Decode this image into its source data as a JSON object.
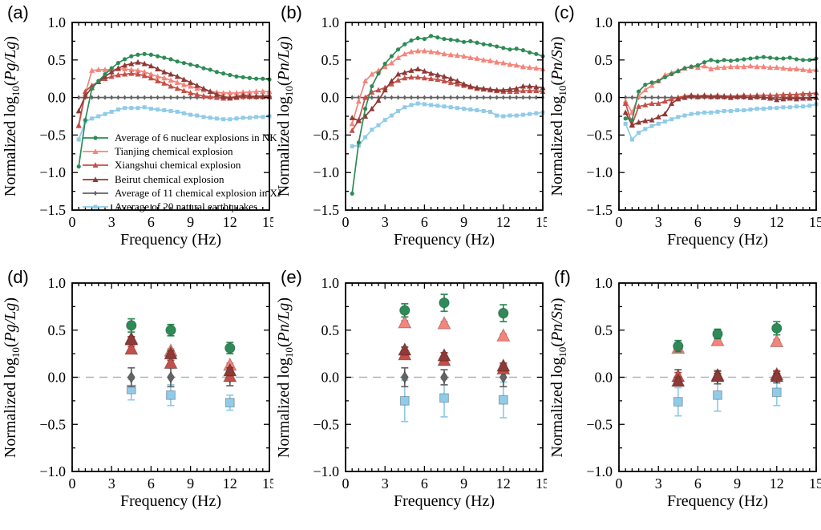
{
  "figure": {
    "xlabel": "Frequency (Hz)",
    "xlim": [
      0,
      15
    ],
    "xticks": [
      0,
      3,
      6,
      9,
      12,
      15
    ],
    "x_minor_step": 0.5,
    "y_minor_step": 0.25,
    "background": "#ffffff",
    "axis_color": "#000000",
    "zero_line_color": "#b3b3b3"
  },
  "series_meta": [
    {
      "id": "nk",
      "label": "Average of 6 nuclear explosions in NK",
      "color": "#2e8b57",
      "marker": "circle"
    },
    {
      "id": "tianjing",
      "label": "Tianjing chemical explosion",
      "color": "#f5847b",
      "marker": "triangle"
    },
    {
      "id": "xiangshui",
      "label": "Xiangshui chemical explosion",
      "color": "#c35049",
      "marker": "triangle"
    },
    {
      "id": "beirut",
      "label": "Beirut chemical explosion",
      "color": "#8e3a36",
      "marker": "triangle"
    },
    {
      "id": "xj",
      "label": "Average of 11 chemical explosion in XJ",
      "color": "#636363",
      "marker": "diamond"
    },
    {
      "id": "eq",
      "label": "Average of 20 natural earthquakes",
      "color": "#90cbe9",
      "marker": "square"
    }
  ],
  "chart_data": [
    {
      "letter": "(a)",
      "type": "line",
      "legend": true,
      "ylabel": {
        "prefix": "Normalized log",
        "sub": "10",
        "ratio": "Pg/Lg"
      },
      "xlabel": "Frequency (Hz)",
      "ylim": [
        -1.5,
        1.0
      ],
      "yticks": [
        -1.5,
        -1.0,
        -0.5,
        0.0,
        0.5,
        1.0
      ],
      "x": [
        0.5,
        1,
        1.5,
        2,
        2.5,
        3,
        3.5,
        4,
        4.5,
        5,
        5.5,
        6,
        6.5,
        7,
        7.5,
        8,
        8.5,
        9,
        9.5,
        10,
        10.5,
        11,
        11.5,
        12,
        12.5,
        13,
        13.5,
        14,
        14.5,
        15
      ],
      "series": {
        "nk": [
          -0.92,
          -0.3,
          0.12,
          0.22,
          0.31,
          0.39,
          0.46,
          0.51,
          0.55,
          0.57,
          0.58,
          0.57,
          0.55,
          0.53,
          0.51,
          0.48,
          0.46,
          0.44,
          0.42,
          0.39,
          0.37,
          0.34,
          0.32,
          0.3,
          0.28,
          0.27,
          0.26,
          0.25,
          0.25,
          0.24
        ],
        "tianjing": [
          -0.38,
          0.05,
          0.36,
          0.37,
          0.37,
          0.37,
          0.38,
          0.38,
          0.37,
          0.36,
          0.34,
          0.31,
          0.28,
          0.26,
          0.23,
          0.2,
          0.17,
          0.15,
          0.12,
          0.1,
          0.08,
          0.07,
          0.06,
          0.06,
          0.06,
          0.07,
          0.07,
          0.08,
          0.08,
          0.08
        ],
        "xiangshui": [
          -0.37,
          0.08,
          0.16,
          0.21,
          0.25,
          0.28,
          0.3,
          0.31,
          0.32,
          0.31,
          0.29,
          0.26,
          0.22,
          0.19,
          0.15,
          0.12,
          0.09,
          0.06,
          0.04,
          0.02,
          0.01,
          0.0,
          -0.01,
          -0.01,
          0.0,
          0.01,
          0.01,
          0.02,
          0.02,
          0.03
        ],
        "beirut": [
          -0.18,
          0.02,
          0.13,
          0.21,
          0.28,
          0.34,
          0.39,
          0.43,
          0.45,
          0.47,
          0.45,
          0.42,
          0.38,
          0.34,
          0.31,
          0.28,
          0.24,
          0.2,
          0.16,
          0.12,
          0.08,
          0.04,
          0.01,
          0.0,
          0.01,
          0.03,
          0.02,
          0.01,
          0.01,
          0.01
        ],
        "xj": [
          0,
          0,
          0,
          0,
          0,
          0,
          0,
          0,
          0,
          0,
          0,
          0,
          0,
          0,
          0,
          0,
          0,
          0,
          0,
          0,
          0,
          0,
          0,
          0,
          0,
          0,
          0,
          0,
          0,
          0
        ],
        "eq": [
          -0.56,
          -0.32,
          -0.28,
          -0.25,
          -0.22,
          -0.19,
          -0.16,
          -0.14,
          -0.14,
          -0.14,
          -0.13,
          -0.15,
          -0.16,
          -0.17,
          -0.18,
          -0.19,
          -0.21,
          -0.23,
          -0.24,
          -0.26,
          -0.27,
          -0.28,
          -0.29,
          -0.29,
          -0.28,
          -0.27,
          -0.27,
          -0.26,
          -0.26,
          -0.25
        ]
      }
    },
    {
      "letter": "(b)",
      "type": "line",
      "ylabel": {
        "prefix": "Normalized log",
        "sub": "10",
        "ratio": "Pn/Lg"
      },
      "xlabel": "Frequency (Hz)",
      "ylim": [
        -1.5,
        1.0
      ],
      "yticks": [
        -1.5,
        -1.0,
        -0.5,
        0.0,
        0.5,
        1.0
      ],
      "x": [
        0.5,
        1,
        1.5,
        2,
        2.5,
        3,
        3.5,
        4,
        4.5,
        5,
        5.5,
        6,
        6.5,
        7,
        7.5,
        8,
        8.5,
        9,
        9.5,
        10,
        10.5,
        11,
        11.5,
        12,
        12.5,
        13,
        13.5,
        14,
        14.5,
        15
      ],
      "series": {
        "nk": [
          -1.28,
          -0.6,
          -0.15,
          0.15,
          0.32,
          0.45,
          0.55,
          0.64,
          0.71,
          0.76,
          0.79,
          0.78,
          0.82,
          0.8,
          0.78,
          0.77,
          0.76,
          0.74,
          0.75,
          0.73,
          0.71,
          0.7,
          0.68,
          0.66,
          0.64,
          0.65,
          0.63,
          0.6,
          0.58,
          0.55
        ],
        "tianjing": [
          -0.35,
          -0.05,
          0.22,
          0.31,
          0.36,
          0.41,
          0.46,
          0.53,
          0.58,
          0.61,
          0.62,
          0.62,
          0.61,
          0.6,
          0.58,
          0.57,
          0.56,
          0.55,
          0.53,
          0.52,
          0.5,
          0.49,
          0.47,
          0.46,
          0.44,
          0.43,
          0.41,
          0.4,
          0.39,
          0.38
        ],
        "xiangshui": [
          -0.44,
          -0.3,
          0.0,
          0.07,
          0.1,
          0.13,
          0.18,
          0.23,
          0.26,
          0.27,
          0.27,
          0.26,
          0.25,
          0.24,
          0.22,
          0.2,
          0.18,
          0.16,
          0.14,
          0.12,
          0.11,
          0.1,
          0.09,
          0.08,
          0.08,
          0.08,
          0.09,
          0.09,
          0.09,
          0.08
        ],
        "beirut": [
          -0.27,
          -0.31,
          -0.25,
          -0.15,
          -0.04,
          0.1,
          0.22,
          0.31,
          0.33,
          0.36,
          0.38,
          0.35,
          0.32,
          0.3,
          0.28,
          0.25,
          0.22,
          0.18,
          0.15,
          0.13,
          0.12,
          0.11,
          0.1,
          0.1,
          0.11,
          0.12,
          0.15,
          0.15,
          0.14,
          0.13
        ],
        "xj": [
          0,
          0,
          0,
          0,
          0,
          0,
          0,
          0,
          0,
          0,
          0,
          0,
          0,
          0,
          0,
          0,
          0,
          0,
          0,
          0,
          0,
          0,
          0,
          0,
          0,
          0,
          0,
          0,
          0,
          0
        ],
        "eq": [
          -0.65,
          -0.64,
          -0.53,
          -0.43,
          -0.37,
          -0.3,
          -0.24,
          -0.18,
          -0.13,
          -0.1,
          -0.08,
          -0.09,
          -0.1,
          -0.11,
          -0.12,
          -0.13,
          -0.14,
          -0.15,
          -0.16,
          -0.17,
          -0.18,
          -0.19,
          -0.24,
          -0.25,
          -0.24,
          -0.24,
          -0.23,
          -0.22,
          -0.21,
          -0.2
        ]
      }
    },
    {
      "letter": "(c)",
      "type": "line",
      "ylabel": {
        "prefix": "Normalized log",
        "sub": "10",
        "ratio": "Pn/Sn"
      },
      "xlabel": "Frequency (Hz)",
      "ylim": [
        -1.5,
        1.0
      ],
      "yticks": [
        -1.5,
        -1.0,
        -0.5,
        0.0,
        0.5,
        1.0
      ],
      "x": [
        0.5,
        1,
        1.5,
        2,
        2.5,
        3,
        3.5,
        4,
        4.5,
        5,
        5.5,
        6,
        6.5,
        7,
        7.5,
        8,
        8.5,
        9,
        9.5,
        10,
        10.5,
        11,
        11.5,
        12,
        12.5,
        13,
        13.5,
        14,
        14.5,
        15
      ],
      "series": {
        "nk": [
          -0.28,
          -0.3,
          0.08,
          0.17,
          0.2,
          0.22,
          0.27,
          0.31,
          0.35,
          0.39,
          0.41,
          0.43,
          0.47,
          0.5,
          0.48,
          0.5,
          0.49,
          0.5,
          0.51,
          0.52,
          0.53,
          0.54,
          0.53,
          0.52,
          0.52,
          0.53,
          0.51,
          0.5,
          0.5,
          0.52
        ],
        "tianjing": [
          -0.05,
          -0.2,
          0.02,
          0.1,
          0.16,
          0.22,
          0.3,
          0.33,
          0.36,
          0.39,
          0.41,
          0.4,
          0.42,
          0.38,
          0.4,
          0.4,
          0.41,
          0.41,
          0.41,
          0.42,
          0.41,
          0.41,
          0.4,
          0.4,
          0.39,
          0.38,
          0.38,
          0.37,
          0.36,
          0.37
        ],
        "xiangshui": [
          -0.08,
          -0.36,
          -0.12,
          -0.1,
          -0.08,
          -0.08,
          -0.05,
          -0.02,
          0.0,
          0.02,
          0.03,
          0.02,
          0.03,
          0.02,
          0.03,
          0.02,
          0.02,
          0.02,
          0.03,
          0.02,
          0.03,
          0.03,
          0.03,
          0.03,
          0.04,
          0.04,
          0.04,
          0.05,
          0.05,
          0.06
        ],
        "beirut": [
          -0.2,
          -0.37,
          -0.33,
          -0.31,
          -0.3,
          -0.26,
          -0.22,
          -0.08,
          -0.02,
          0.0,
          0.02,
          0.01,
          0.02,
          0.01,
          0.01,
          0.01,
          0.0,
          0.01,
          0.01,
          0.0,
          0.01,
          0.0,
          -0.01,
          -0.03,
          -0.02,
          -0.01,
          -0.02,
          -0.01,
          -0.01,
          0.0
        ],
        "xj": [
          0,
          0,
          0,
          0,
          0,
          0,
          0,
          0,
          0,
          0,
          0,
          0,
          0,
          0,
          0,
          0,
          0,
          0,
          0,
          0,
          0,
          0,
          0,
          0,
          0,
          0,
          0,
          0,
          0,
          0
        ],
        "eq": [
          -0.35,
          -0.56,
          -0.47,
          -0.42,
          -0.38,
          -0.35,
          -0.32,
          -0.29,
          -0.26,
          -0.24,
          -0.22,
          -0.21,
          -0.2,
          -0.2,
          -0.19,
          -0.18,
          -0.18,
          -0.17,
          -0.17,
          -0.16,
          -0.15,
          -0.15,
          -0.14,
          -0.14,
          -0.13,
          -0.13,
          -0.12,
          -0.12,
          -0.11,
          -0.09
        ]
      }
    },
    {
      "letter": "(d)",
      "type": "scatter",
      "zero_line": "dashed",
      "ylabel": {
        "prefix": "Normalized log",
        "sub": "10",
        "ratio": "Pg/Lg"
      },
      "xlabel": "Frequency (Hz)",
      "ylim": [
        -1.0,
        1.0
      ],
      "yticks": [
        -1.0,
        -0.5,
        0.0,
        0.5,
        1.0
      ],
      "x": [
        4.5,
        7.5,
        12
      ],
      "series": {
        "nk": {
          "y": [
            0.55,
            0.5,
            0.31
          ],
          "err": [
            0.07,
            0.06,
            0.06
          ]
        },
        "tianjing": {
          "y": [
            0.41,
            0.28,
            0.13
          ],
          "err": [
            0.02,
            0.02,
            0.02
          ]
        },
        "xiangshui": {
          "y": [
            0.3,
            0.15,
            0.01
          ],
          "err": [
            0.03,
            0.03,
            0.04
          ]
        },
        "beirut": {
          "y": [
            0.4,
            0.25,
            0.07
          ],
          "err": [
            0.03,
            0.03,
            0.03
          ]
        },
        "xj": {
          "y": [
            0.0,
            0.0,
            0.0
          ],
          "err": [
            0.1,
            0.1,
            0.09
          ]
        },
        "eq": {
          "y": [
            -0.13,
            -0.19,
            -0.27
          ],
          "err": [
            0.11,
            0.11,
            0.08
          ]
        }
      }
    },
    {
      "letter": "(e)",
      "type": "scatter",
      "zero_line": "dashed",
      "ylabel": {
        "prefix": "Normalized log",
        "sub": "10",
        "ratio": "Pn/Lg"
      },
      "xlabel": "Frequency (Hz)",
      "ylim": [
        -1.0,
        1.0
      ],
      "yticks": [
        -1.0,
        -0.5,
        0.0,
        0.5,
        1.0
      ],
      "x": [
        4.5,
        7.5,
        12
      ],
      "series": {
        "nk": {
          "y": [
            0.71,
            0.79,
            0.68
          ],
          "err": [
            0.07,
            0.09,
            0.09
          ]
        },
        "tianjing": {
          "y": [
            0.58,
            0.57,
            0.44
          ],
          "err": [
            0.02,
            0.02,
            0.02
          ]
        },
        "xiangshui": {
          "y": [
            0.24,
            0.18,
            0.09
          ],
          "err": [
            0.04,
            0.04,
            0.04
          ]
        },
        "beirut": {
          "y": [
            0.29,
            0.23,
            0.12
          ],
          "err": [
            0.03,
            0.03,
            0.03
          ]
        },
        "xj": {
          "y": [
            0.0,
            0.0,
            0.0
          ],
          "err": [
            0.1,
            0.08,
            0.1
          ]
        },
        "eq": {
          "y": [
            -0.25,
            -0.22,
            -0.24
          ],
          "err": [
            0.22,
            0.2,
            0.19
          ]
        }
      }
    },
    {
      "letter": "(f)",
      "type": "scatter",
      "zero_line": "dashed",
      "ylabel": {
        "prefix": "Normalized log",
        "sub": "10",
        "ratio": "Pn/Sn"
      },
      "xlabel": "Frequency (Hz)",
      "ylim": [
        -1.0,
        1.0
      ],
      "yticks": [
        -1.0,
        -0.5,
        0.0,
        0.5,
        1.0
      ],
      "x": [
        4.5,
        7.5,
        12
      ],
      "series": {
        "nk": {
          "y": [
            0.33,
            0.46,
            0.52
          ],
          "err": [
            0.06,
            0.05,
            0.07
          ]
        },
        "tianjing": {
          "y": [
            0.31,
            0.39,
            0.38
          ],
          "err": [
            0.02,
            0.02,
            0.02
          ]
        },
        "xiangshui": {
          "y": [
            0.01,
            0.02,
            0.03
          ],
          "err": [
            0.04,
            0.04,
            0.04
          ]
        },
        "beirut": {
          "y": [
            -0.04,
            0.01,
            0.01
          ],
          "err": [
            0.04,
            0.03,
            0.03
          ]
        },
        "xj": {
          "y": [
            0.0,
            0.0,
            0.0
          ],
          "err": [
            0.08,
            0.07,
            0.06
          ]
        },
        "eq": {
          "y": [
            -0.26,
            -0.19,
            -0.16
          ],
          "err": [
            0.15,
            0.17,
            0.14
          ]
        }
      }
    }
  ]
}
